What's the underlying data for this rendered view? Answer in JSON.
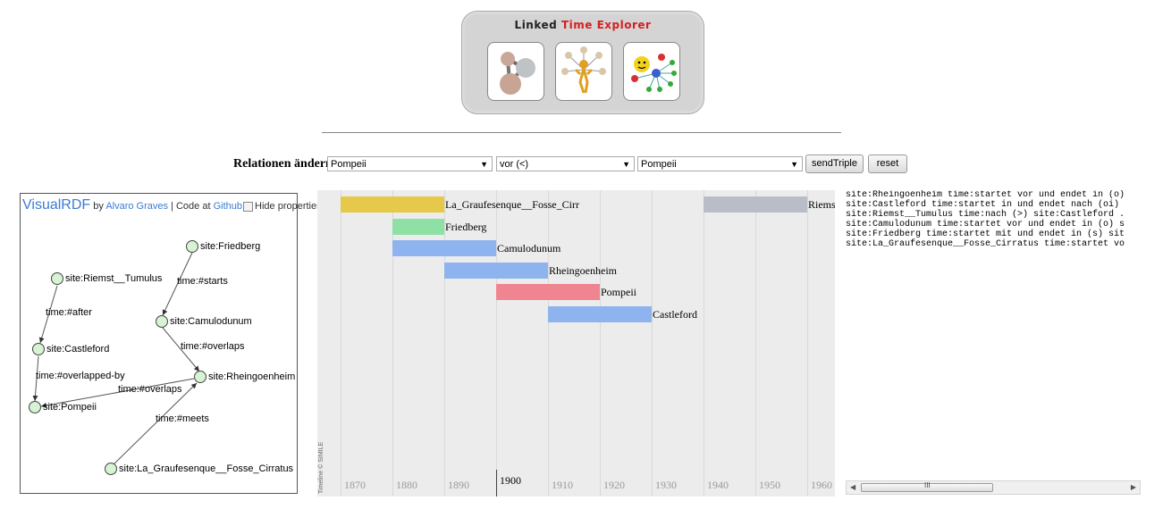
{
  "logo": {
    "title_word1": "Linked",
    "title_word2": "Time",
    "title_word3": "Explorer",
    "tiles": [
      "molecule-icon",
      "user-network-icon",
      "smiley-network-icon"
    ]
  },
  "form": {
    "label": "Relationen ändern:",
    "subject_value": "Pompeii",
    "predicate_value": "vor (<)",
    "object_value": "Pompeii",
    "send_label": "sendTriple",
    "reset_label": "reset"
  },
  "visualrdf": {
    "brand": "VisualRDF",
    "by": "by",
    "author": "Alvaro Graves",
    "code_at": "| Code at",
    "github": "Github",
    "hide_label": "Hide properties",
    "nodes": [
      {
        "label": "site:Friedberg"
      },
      {
        "label": "site:Riemst__Tumulus"
      },
      {
        "label": "site:Camulodunum"
      },
      {
        "label": "site:Castleford"
      },
      {
        "label": "site:Rheingoenheim"
      },
      {
        "label": "site:Pompeii"
      },
      {
        "label": "site:La_Graufesenque__Fosse_Cirratus"
      }
    ],
    "edges": [
      {
        "label": "time:#starts"
      },
      {
        "label": "time:#after"
      },
      {
        "label": "time:#overlaps"
      },
      {
        "label": "time:#overlapped-by"
      },
      {
        "label": "time:#overlaps"
      },
      {
        "label": "time:#meets"
      }
    ]
  },
  "timeline": {
    "ticks": [
      "1870",
      "1880",
      "1890",
      "1900",
      "1910",
      "1920",
      "1930",
      "1940",
      "1950",
      "1960"
    ],
    "marker": "1900",
    "credit": "Timeline © SIMILE",
    "events": [
      {
        "label": "La_Graufesenque__Fosse_Cirr",
        "start": 1865,
        "end": 1885,
        "color": "#e6c84a"
      },
      {
        "label": "Riems",
        "start": 1935,
        "end": 1955,
        "color": "#b9bec6"
      },
      {
        "label": "Friedberg",
        "start": 1875,
        "end": 1885,
        "color": "#8fe0a4"
      },
      {
        "label": "Camulodunum",
        "start": 1875,
        "end": 1895,
        "color": "#8db4ee"
      },
      {
        "label": "Rheingoenheim",
        "start": 1885,
        "end": 1905,
        "color": "#8db4ee"
      },
      {
        "label": "Pompeii",
        "start": 1895,
        "end": 1915,
        "color": "#f08592"
      },
      {
        "label": "Castleford",
        "start": 1905,
        "end": 1925,
        "color": "#8db4ee"
      }
    ]
  },
  "triples": [
    "site:Rheingoenheim time:startet vor und endet in (o)",
    "site:Castleford time:startet in und endet nach (oi)",
    "site:Riemst__Tumulus time:nach (>) site:Castleford .",
    "site:Camulodunum time:startet vor und endet in (o) s",
    "site:Friedberg time:startet mit und endet in (s) sit",
    "site:La_Graufesenque__Fosse_Cirratus time:startet vo"
  ],
  "scrollbar": {
    "grip": "III"
  }
}
